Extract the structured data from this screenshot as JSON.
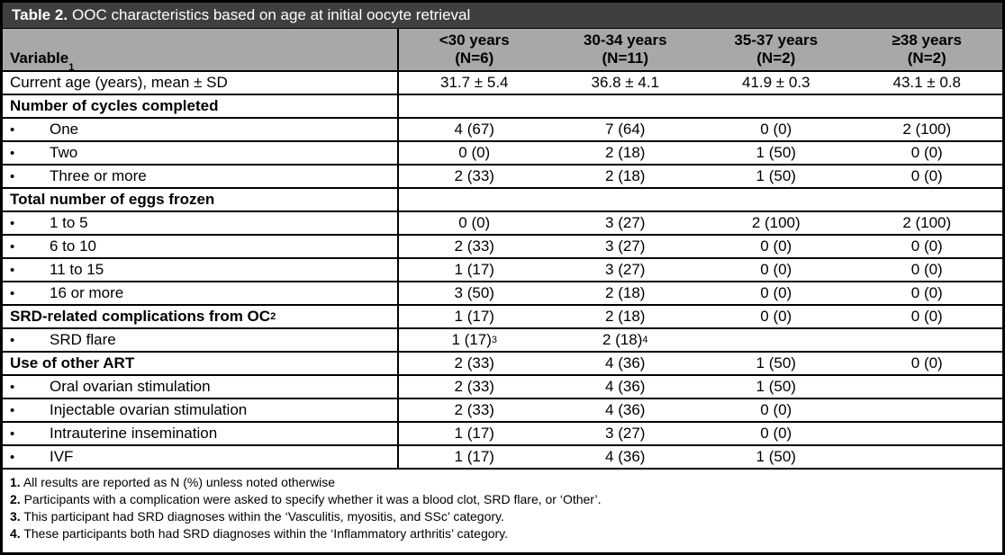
{
  "table": {
    "title_bold": "Table 2.",
    "title_rest": "OOC characteristics based on age at initial oocyte retrieval",
    "variable_header": "Variable",
    "variable_header_sup": "1",
    "bullet_char": "•",
    "columns": [
      {
        "line1": "<30 years",
        "line2": "(N=6)"
      },
      {
        "line1": "30-34 years",
        "line2": "(N=11)"
      },
      {
        "line1": "35-37 years",
        "line2": "(N=2)"
      },
      {
        "line1": "≥38 years",
        "line2": "(N=2)"
      }
    ],
    "rows": [
      {
        "label": "Current age (years), mean ± SD",
        "bold": false,
        "bullet": false,
        "values": [
          "31.7 ± 5.4",
          "36.8 ± 4.1",
          "41.9 ± 0.3",
          "43.1 ± 0.8"
        ]
      },
      {
        "label": "Number of cycles completed",
        "bold": true,
        "bullet": false,
        "values": [
          "",
          "",
          "",
          ""
        ]
      },
      {
        "label": "One",
        "bold": false,
        "bullet": true,
        "values": [
          "4 (67)",
          "7 (64)",
          "0 (0)",
          "2 (100)"
        ]
      },
      {
        "label": "Two",
        "bold": false,
        "bullet": true,
        "values": [
          "0 (0)",
          "2 (18)",
          "1 (50)",
          "0 (0)"
        ]
      },
      {
        "label": "Three or more",
        "bold": false,
        "bullet": true,
        "values": [
          "2 (33)",
          "2 (18)",
          "1 (50)",
          "0 (0)"
        ]
      },
      {
        "label": "Total number of eggs frozen",
        "bold": true,
        "bullet": false,
        "values": [
          "",
          "",
          "",
          ""
        ]
      },
      {
        "label": "1 to 5",
        "bold": false,
        "bullet": true,
        "values": [
          "0 (0)",
          "3 (27)",
          "2 (100)",
          "2 (100)"
        ]
      },
      {
        "label": "6 to 10",
        "bold": false,
        "bullet": true,
        "values": [
          "2 (33)",
          "3 (27)",
          "0 (0)",
          "0 (0)"
        ]
      },
      {
        "label": "11 to 15",
        "bold": false,
        "bullet": true,
        "values": [
          "1 (17)",
          "3 (27)",
          "0 (0)",
          "0 (0)"
        ]
      },
      {
        "label": "16 or more",
        "bold": false,
        "bullet": true,
        "values": [
          "3 (50)",
          "2 (18)",
          "0 (0)",
          "0 (0)"
        ]
      },
      {
        "label": "SRD-related complications from OC",
        "label_sup": "2",
        "bold": true,
        "bullet": false,
        "values": [
          "1 (17)",
          "2 (18)",
          "0 (0)",
          "0 (0)"
        ]
      },
      {
        "label": "SRD flare",
        "bold": false,
        "bullet": true,
        "values": [
          "1 (17)",
          "2 (18)",
          "",
          ""
        ],
        "value_sups": [
          "3",
          "4",
          "",
          ""
        ]
      },
      {
        "label": "Use of other ART",
        "bold": true,
        "bullet": false,
        "values": [
          "2 (33)",
          "4 (36)",
          "1 (50)",
          "0 (0)"
        ]
      },
      {
        "label": "Oral ovarian stimulation",
        "bold": false,
        "bullet": true,
        "values": [
          "2 (33)",
          "4 (36)",
          "1 (50)",
          ""
        ]
      },
      {
        "label": "Injectable ovarian stimulation",
        "bold": false,
        "bullet": true,
        "values": [
          "2 (33)",
          "4 (36)",
          "0 (0)",
          ""
        ]
      },
      {
        "label": "Intrauterine insemination",
        "bold": false,
        "bullet": true,
        "values": [
          "1 (17)",
          "3 (27)",
          "0 (0)",
          ""
        ]
      },
      {
        "label": "IVF",
        "bold": false,
        "bullet": true,
        "values": [
          "1 (17)",
          "4 (36)",
          "1 (50)",
          ""
        ]
      }
    ],
    "footnotes": [
      {
        "num": "1.",
        "text": "All results are reported as N (%) unless noted otherwise"
      },
      {
        "num": "2.",
        "text": "Participants with a complication were asked to specify whether it was a blood clot, SRD flare, or ‘Other’."
      },
      {
        "num": "3.",
        "text": "This participant had SRD diagnoses within the ‘Vasculitis, myositis, and SSc’ category."
      },
      {
        "num": "4.",
        "text": "These participants both had SRD diagnoses within the ‘Inflammatory arthritis’ category."
      }
    ],
    "colors": {
      "title_bar_bg": "#3f3f3f",
      "header_bg": "#a8a8a8",
      "border": "#000000"
    }
  }
}
